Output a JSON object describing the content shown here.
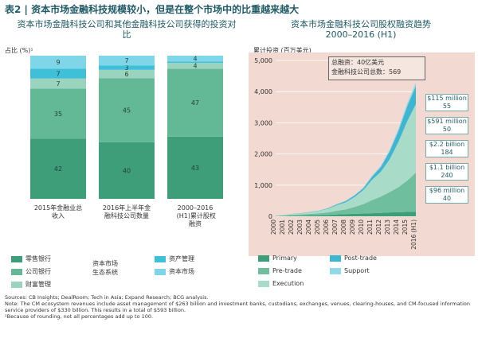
{
  "title": "表2 | 资本市场金融科技规模较小，但是在整个市场中的比重越来越大",
  "left_subtitle": "资本市场金融科技公司和其他金融科技公司获得的投资对比",
  "right_subtitle": "资本市场金融科技公司股权融资趋势\n2000–2016 (H1)",
  "left_ylabel": "占比 (%)¹",
  "right_ylabel": "累计投资 (百万美元)",
  "total_box": {
    "line1": "总融资：40亿美元",
    "line2": "金融科技公司总数：569"
  },
  "value_boxes": [
    {
      "top": "$115 million",
      "bottom": "55"
    },
    {
      "top": "$591 million",
      "bottom": "50"
    },
    {
      "top": "$2.2 billion",
      "bottom": "184"
    },
    {
      "top": "$1.1 billion",
      "bottom": "240"
    },
    {
      "top": "$96 million",
      "bottom": "40"
    }
  ],
  "left_legend": {
    "items": [
      "零售银行",
      "公司银行",
      "财富管理",
      "资产管理",
      "资本市场"
    ],
    "group_label": "资本市场\n生态系统"
  },
  "right_legend": {
    "items": [
      "Primary",
      "Post-trade",
      "Pre-trade",
      "Support",
      "Execution"
    ]
  },
  "footnotes": {
    "sources": "Sources: CB Insights; DealRoom; Tech in Asia; Expand Research; BCG analysis.",
    "note": "Note: The CM ecosystem revenues include asset management of $263 billion and investment banks, custodians, exchanges, venues, clearing-houses, and CM-focused information service providers of $330 billion. This results in a total of $593 billion.",
    "rounding": "¹Because of rounding, not all percentages add up to 100."
  },
  "colors": {
    "retail": "#3f9e7a",
    "corporate": "#63b896",
    "wealth": "#9ad4bf",
    "asset": "#3fc0d8",
    "capital": "#7fd6e8",
    "right_bg": "#f2d9d1",
    "primary": "#3f9e7a",
    "pretrade": "#6fbf9e",
    "execution": "#a9dcc8",
    "posttrade": "#3fb6d1",
    "support": "#8fd9ea"
  },
  "chart_data": [
    {
      "type": "bar",
      "title": "资本市场金融科技公司和其他金融科技公司获得的投资对比",
      "ylabel": "占比 (%)¹",
      "categories": [
        "2015年金融业总收入",
        "2016年上半年金融科技公司数量",
        "2000–2016 (H1)累计股权融资"
      ],
      "series": [
        {
          "name": "零售银行",
          "values": [
            42,
            40,
            43
          ]
        },
        {
          "name": "公司银行",
          "values": [
            35,
            45,
            47
          ]
        },
        {
          "name": "财富管理",
          "values": [
            7,
            6,
            4
          ]
        },
        {
          "name": "资产管理",
          "values": [
            7,
            3,
            1
          ]
        },
        {
          "name": "资本市场",
          "values": [
            9,
            7,
            4
          ]
        }
      ],
      "ylim": [
        0,
        100
      ]
    },
    {
      "type": "area",
      "title": "资本市场金融科技公司股权融资趋势 2000–2016 (H1)",
      "ylabel": "累计投资 (百万美元)",
      "x": [
        "2000",
        "2001",
        "2002",
        "2003",
        "2004",
        "2005",
        "2006",
        "2007",
        "2008",
        "2009",
        "2010",
        "2011",
        "2012",
        "2013",
        "2014",
        "2015",
        "2016 (H1)"
      ],
      "series": [
        {
          "name": "Primary",
          "values": [
            5,
            10,
            15,
            20,
            25,
            35,
            45,
            60,
            70,
            80,
            90,
            100,
            110,
            125,
            130,
            140,
            150
          ]
        },
        {
          "name": "Pre-trade",
          "values": [
            10,
            20,
            30,
            40,
            50,
            60,
            80,
            120,
            150,
            220,
            300,
            420,
            520,
            650,
            800,
            1000,
            1250
          ]
        },
        {
          "name": "Execution",
          "values": [
            10,
            20,
            30,
            40,
            60,
            80,
            120,
            180,
            230,
            320,
            450,
            650,
            800,
            1050,
            1450,
            1900,
            2200
          ]
        },
        {
          "name": "Post-trade",
          "values": [
            0,
            0,
            5,
            5,
            10,
            10,
            20,
            30,
            40,
            50,
            60,
            100,
            150,
            250,
            350,
            480,
            580
          ]
        },
        {
          "name": "Support",
          "values": [
            0,
            0,
            0,
            0,
            0,
            5,
            5,
            5,
            10,
            10,
            20,
            30,
            40,
            50,
            70,
            90,
            120
          ]
        }
      ],
      "ylim": [
        0,
        5000
      ],
      "yticks": [
        "0",
        "1,000",
        "2,000",
        "3,000",
        "4,000",
        "5,000"
      ]
    }
  ]
}
